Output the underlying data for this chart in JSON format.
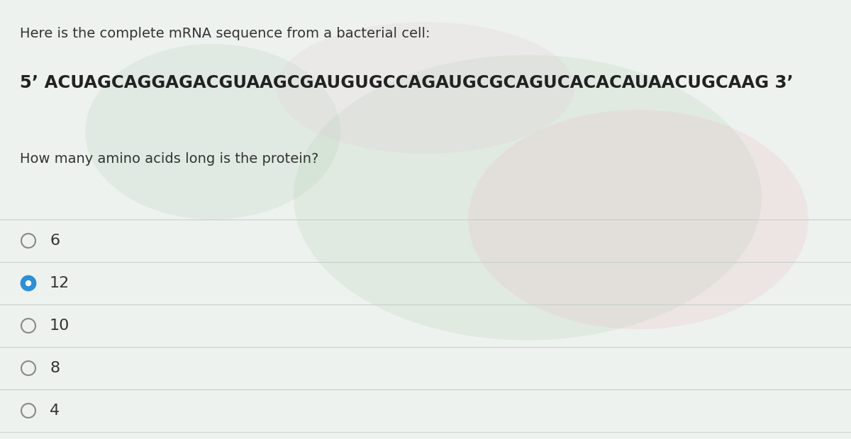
{
  "background_color": "#e8ede9",
  "header_text": "Here is the complete mRNA sequence from a bacterial cell:",
  "sequence_text": "5’ ACUAGCAGGAGACGUAAGCGAUGUGCCAGAUGCGCAGUCACACAUAACUGCAAG 3’",
  "question_text": "How many amino acids long is the protein?",
  "options": [
    "6",
    "12",
    "10",
    "8",
    "4"
  ],
  "selected_index": 1,
  "header_fontsize": 14,
  "sequence_fontsize": 17.5,
  "question_fontsize": 14,
  "option_fontsize": 16,
  "text_color": "#333333",
  "sequence_color": "#222222",
  "radio_color_unselected": "#888888",
  "radio_color_selected": "#2d8fd4",
  "radio_fill_selected": "#2d8fd4",
  "divider_color": "#c8cfc9",
  "panel_bg": "#eef2ef"
}
